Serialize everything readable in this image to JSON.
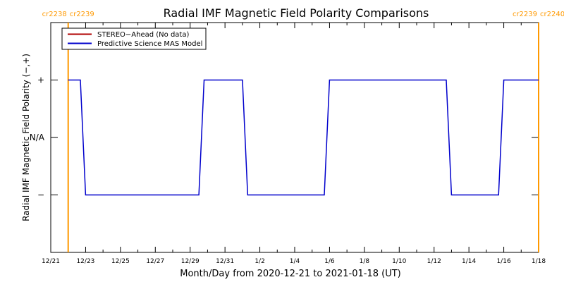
{
  "chart_data": {
    "type": "line",
    "title": "Radial IMF Magnetic Field Polarity Comparisons",
    "xlabel": "Month/Day from 2020-12-21 to 2021-01-18 (UT)",
    "ylabel": "Radial IMF Magnetic Field Polarity (−,+)",
    "x_range": [
      "2020-12-21",
      "2021-01-18"
    ],
    "ylim": [
      -2,
      2
    ],
    "x_ticks": [
      "12/21",
      "12/23",
      "12/25",
      "12/27",
      "12/29",
      "12/31",
      "1/2",
      "1/4",
      "1/6",
      "1/8",
      "1/10",
      "1/12",
      "1/14",
      "1/16",
      "1/18"
    ],
    "y_ticks": [
      {
        "value": 1,
        "label": "+"
      },
      {
        "value": 0,
        "label": "N/A"
      },
      {
        "value": -1,
        "label": "−"
      }
    ],
    "legend": {
      "placement": "top-left",
      "entries": [
        {
          "label": "STEREO−Ahead (No data)",
          "color": "#b00000"
        },
        {
          "label": "Predictive Science MAS Model",
          "color": "#0000cc"
        }
      ]
    },
    "rotation_markers": [
      {
        "date": "2020-12-22.0",
        "labels": [
          "cr2238",
          "cr2239"
        ]
      },
      {
        "date": "2021-01-18.0",
        "labels": [
          "cr2239",
          "cr2240"
        ]
      }
    ],
    "marker_color": "#ff9900",
    "series": [
      {
        "name": "Predictive Science MAS Model",
        "color": "#0000cc",
        "x": [
          "2020-12-22.0",
          "2020-12-22.7",
          "2020-12-23.0",
          "2020-12-29.5",
          "2020-12-29.8",
          "2021-01-01.0",
          "2021-01-01.3",
          "2021-01-05.7",
          "2021-01-06.0",
          "2021-01-12.7",
          "2021-01-13.0",
          "2021-01-15.7",
          "2021-01-16.0",
          "2021-01-18.0"
        ],
        "y": [
          1,
          1,
          -1,
          -1,
          1,
          1,
          -1,
          -1,
          1,
          1,
          -1,
          -1,
          1,
          1
        ]
      },
      {
        "name": "STEREO−Ahead (No data)",
        "color": "#b00000",
        "x": [],
        "y": []
      }
    ]
  }
}
